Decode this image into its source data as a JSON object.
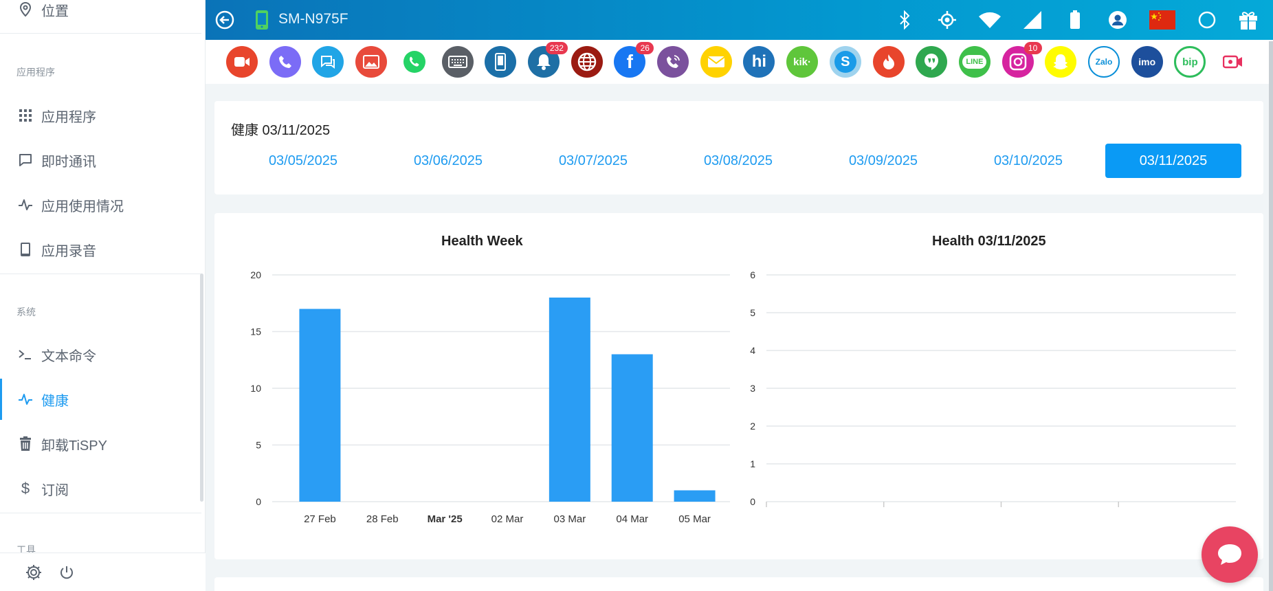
{
  "sidebar": {
    "location": "位置",
    "section_apps": "应用程序",
    "items_apps": [
      "应用程序",
      "即时通讯",
      "应用使用情况",
      "应用录音"
    ],
    "section_system": "系统",
    "items_system": [
      "文本命令",
      "健康",
      "卸载TiSPY",
      "订阅"
    ],
    "section_tools": "工具"
  },
  "topbar": {
    "device_name": "SM-N975F",
    "icons": [
      "bluetooth-icon",
      "gps-icon",
      "wifi-icon",
      "signal-icon",
      "battery-icon",
      "account-icon",
      "china-flag-icon",
      "circle-icon",
      "gift-icon"
    ]
  },
  "apps": [
    {
      "name": "video-call",
      "color": "#e8452c"
    },
    {
      "name": "phone",
      "color": "#7b6cf6"
    },
    {
      "name": "messages",
      "color": "#21a5e6"
    },
    {
      "name": "gallery",
      "color": "#e84a3b"
    },
    {
      "name": "whatsapp",
      "color": "#fff"
    },
    {
      "name": "keyboard",
      "color": "#5a5f66"
    },
    {
      "name": "device",
      "color": "#1b6fa8"
    },
    {
      "name": "notifications",
      "color": "#1e6fa5",
      "badge": "232"
    },
    {
      "name": "browser",
      "color": "#9b1b12"
    },
    {
      "name": "facebook",
      "color": "#1877f2",
      "badge": "26"
    },
    {
      "name": "viber",
      "color": "#7b519d"
    },
    {
      "name": "email",
      "color": "#ffd200"
    },
    {
      "name": "hike",
      "color": "#1f72b8"
    },
    {
      "name": "kik",
      "color": "#5fc63b"
    },
    {
      "name": "skype",
      "color": "#9fd3ee"
    },
    {
      "name": "tinder",
      "color": "#e8452c"
    },
    {
      "name": "hangouts",
      "color": "#2fa84f"
    },
    {
      "name": "line",
      "color": "#3fc04a"
    },
    {
      "name": "instagram",
      "color": "#d6249f",
      "badge": "10"
    },
    {
      "name": "snapchat",
      "color": "#fffc00"
    },
    {
      "name": "zalo",
      "color": "#fff"
    },
    {
      "name": "imo",
      "color": "#1d4f9c"
    },
    {
      "name": "bip",
      "color": "#fff"
    },
    {
      "name": "likee",
      "color": "#fff"
    }
  ],
  "app_labels": {
    "hike": "hi",
    "kik": "kik·",
    "skype": "S",
    "zalo": "Zalo",
    "imo": "imo",
    "bip": "bip",
    "line": "LINE"
  },
  "date_card": {
    "title": "健康 03/11/2025",
    "tabs": [
      "03/05/2025",
      "03/06/2025",
      "03/07/2025",
      "03/08/2025",
      "03/09/2025",
      "03/10/2025",
      "03/11/2025"
    ],
    "active_index": 6
  },
  "chart_data": [
    {
      "type": "bar",
      "title": "Health Week",
      "categories": [
        "27 Feb",
        "28 Feb",
        "Mar '25",
        "02 Mar",
        "03 Mar",
        "04 Mar",
        "05 Mar"
      ],
      "values": [
        17,
        0,
        0,
        0,
        18,
        13,
        1
      ],
      "ylim": [
        0,
        20
      ],
      "yticks": [
        0,
        5,
        10,
        15,
        20
      ],
      "bold_category_index": 2,
      "color": "#2a9df4",
      "grid": true
    },
    {
      "type": "bar",
      "title": "Health 03/11/2025",
      "categories": [],
      "values": [],
      "ylim": [
        0,
        6
      ],
      "yticks": [
        0,
        1,
        2,
        3,
        4,
        5,
        6
      ],
      "grid": true
    }
  ]
}
